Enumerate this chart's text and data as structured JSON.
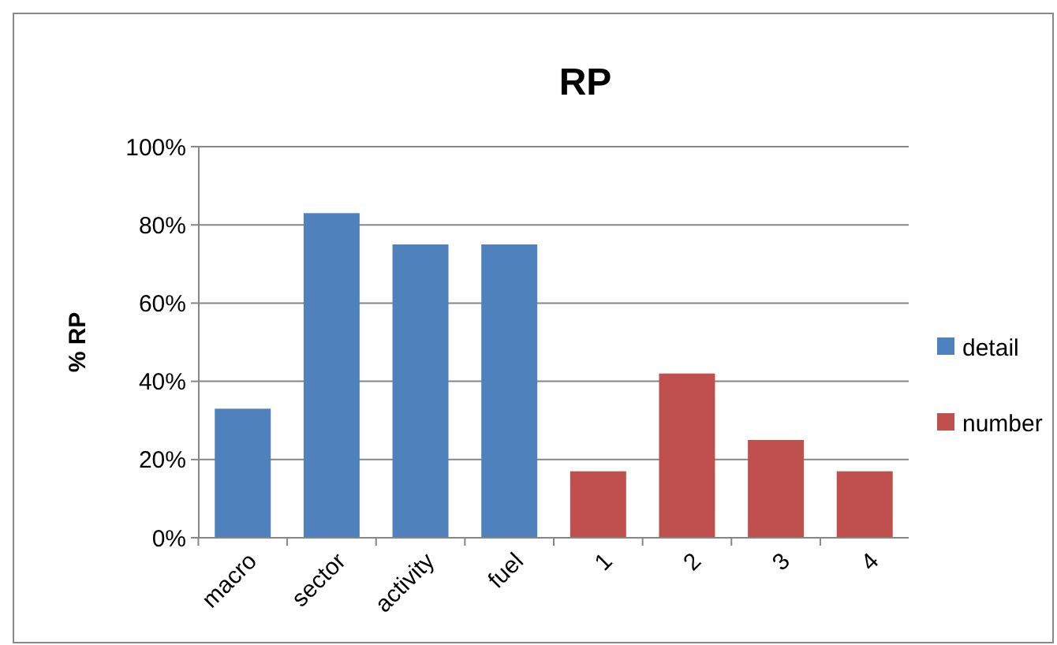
{
  "chart_data": {
    "type": "bar",
    "title": "RP",
    "ylabel": "% RP",
    "categories": [
      "macro",
      "sector",
      "activity",
      "fuel",
      "1",
      "2",
      "3",
      "4"
    ],
    "series": [
      {
        "name": "detail",
        "color": "#4f81bd",
        "values": [
          33,
          83,
          75,
          75,
          null,
          null,
          null,
          null
        ]
      },
      {
        "name": "number",
        "color": "#c0504d",
        "values": [
          null,
          null,
          null,
          null,
          17,
          42,
          25,
          17
        ]
      }
    ],
    "ylim": [
      0,
      100
    ],
    "yticks": [
      {
        "value": 0,
        "label": "0%"
      },
      {
        "value": 20,
        "label": "20%"
      },
      {
        "value": 40,
        "label": "40%"
      },
      {
        "value": 60,
        "label": "60%"
      },
      {
        "value": 80,
        "label": "80%"
      },
      {
        "value": 100,
        "label": "100%"
      }
    ],
    "grid": "y",
    "legend": "right"
  }
}
